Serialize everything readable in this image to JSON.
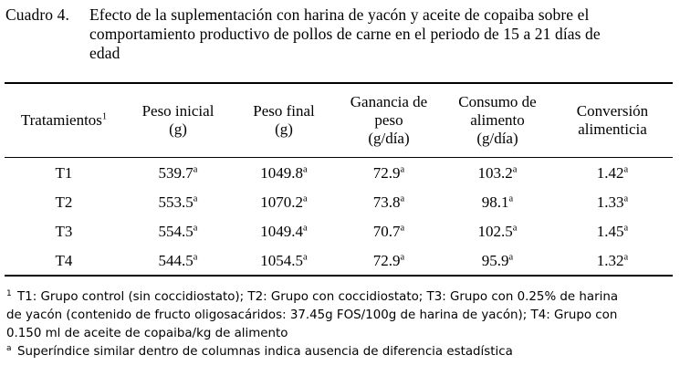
{
  "caption": {
    "label": "Cuadro 4.",
    "lines": [
      "Efecto de la suplementación con harina de yacón y aceite de copaiba sobre el",
      "comportamiento productivo de pollos de carne en el periodo de 15 a 21 días de",
      "edad"
    ]
  },
  "table": {
    "headers": [
      {
        "lines": [
          "Tratamientos"
        ],
        "sup": "1"
      },
      {
        "lines": [
          "Peso inicial",
          "(g)"
        ]
      },
      {
        "lines": [
          "Peso final",
          "(g)"
        ]
      },
      {
        "lines": [
          "Ganancia de",
          "peso",
          "(g/día)"
        ]
      },
      {
        "lines": [
          "Consumo de",
          "alimento",
          "(g/día)"
        ]
      },
      {
        "lines": [
          "Conversión",
          "alimenticia"
        ]
      }
    ],
    "rows": [
      {
        "treatment": "T1",
        "cells": [
          {
            "v": "539.7",
            "s": "a"
          },
          {
            "v": "1049.8",
            "s": "a"
          },
          {
            "v": "72.9",
            "s": "a"
          },
          {
            "v": "103.2",
            "s": "a"
          },
          {
            "v": "1.42",
            "s": "a"
          }
        ]
      },
      {
        "treatment": "T2",
        "cells": [
          {
            "v": "553.5",
            "s": "a"
          },
          {
            "v": "1070.2",
            "s": "a"
          },
          {
            "v": "73.8",
            "s": "a"
          },
          {
            "v": "98.1",
            "s": "a"
          },
          {
            "v": "1.33",
            "s": "a"
          }
        ]
      },
      {
        "treatment": "T3",
        "cells": [
          {
            "v": "554.5",
            "s": "a"
          },
          {
            "v": "1049.4",
            "s": "a"
          },
          {
            "v": "70.7",
            "s": "a"
          },
          {
            "v": "102.5",
            "s": "a"
          },
          {
            "v": "1.45",
            "s": "a"
          }
        ]
      },
      {
        "treatment": "T4",
        "cells": [
          {
            "v": "544.5",
            "s": "a"
          },
          {
            "v": "1054.5",
            "s": "a"
          },
          {
            "v": "72.9",
            "s": "a"
          },
          {
            "v": "95.9",
            "s": "a"
          },
          {
            "v": "1.32",
            "s": "a"
          }
        ]
      }
    ]
  },
  "footnotes": [
    {
      "marker": "1",
      "lines": [
        "T1: Grupo control (sin coccidiostato); T2: Grupo con coccidiostato; T3: Grupo con 0.25% de harina",
        "de yacón (contenido de fructo oligosacáridos: 37.45g FOS/100g de harina de yacón); T4: Grupo con",
        "0.150 ml de aceite de copaiba/kg de alimento"
      ]
    },
    {
      "marker": "a",
      "lines": [
        "Superíndice similar dentro de columnas indica ausencia de diferencia estadística"
      ]
    }
  ]
}
